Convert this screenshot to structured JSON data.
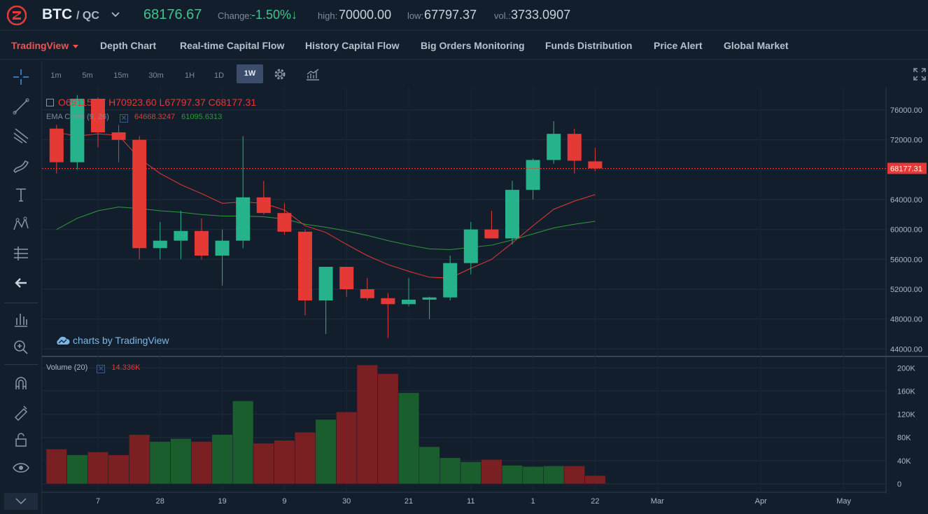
{
  "header": {
    "base": "BTC",
    "quote": "/ QC",
    "last_price": "68176.67",
    "change_label": "Change:",
    "change_value": "-1.50%↓",
    "high_label": "high:",
    "high_value": "70000.00",
    "low_label": "low:",
    "low_value": "67797.37",
    "vol_label": "vol.:",
    "vol_value": "3733.0907"
  },
  "nav": {
    "items": [
      {
        "label": "TradingView"
      },
      {
        "label": "Depth Chart"
      },
      {
        "label": "Real-time Capital Flow"
      },
      {
        "label": "History Capital Flow"
      },
      {
        "label": "Big Orders Monitoring"
      },
      {
        "label": "Funds Distribution"
      },
      {
        "label": "Price Alert"
      },
      {
        "label": "Global Market"
      }
    ]
  },
  "intervals": [
    "1m",
    "5m",
    "15m",
    "30m",
    "1H",
    "1D",
    "1W"
  ],
  "active_interval": "1W",
  "legend": {
    "ohlc": {
      "O": "O69115.17",
      "H": "H70923.60",
      "L": "L67797.37",
      "C": "C68177.31"
    },
    "ema_label": "EMA Cross (9, 26)",
    "ema_fast": "64668.3247",
    "ema_slow": "61095.6313",
    "volume_label": "Volume (20)",
    "volume_value": "14.336K",
    "watermark": "charts by TradingView"
  },
  "colors": {
    "up": "#26b28a",
    "down": "#e53935",
    "vol_up": "#1b5e2e",
    "vol_down": "#7a1f22",
    "ema_fast": "#e53935",
    "ema_slow": "#2e9a3a",
    "accent": "#ef5350"
  },
  "chart_data": {
    "type": "candlestick",
    "price_axis": {
      "ticks": [
        44000,
        48000,
        52000,
        56000,
        60000,
        64000,
        68000,
        72000,
        76000
      ],
      "tick_labels": [
        "44000.00",
        "48000.00",
        "52000.00",
        "56000.00",
        "60000.00",
        "64000.00",
        "68000.00",
        "72000.00",
        "76000.00"
      ]
    },
    "last_price_label": "68177.31",
    "last_price": 68177.31,
    "volume_axis": {
      "ticks": [
        0,
        40000,
        80000,
        120000,
        160000,
        200000
      ],
      "tick_labels": [
        "0",
        "40K",
        "80K",
        "120K",
        "160K",
        "200K"
      ]
    },
    "x_ticks": [
      {
        "label": "7",
        "index": 2
      },
      {
        "label": "28",
        "index": 5
      },
      {
        "label": "19",
        "index": 8
      },
      {
        "label": "9",
        "index": 11
      },
      {
        "label": "30",
        "index": 14
      },
      {
        "label": "21",
        "index": 17
      },
      {
        "label": "11",
        "index": 20
      },
      {
        "label": "1",
        "index": 23
      },
      {
        "label": "22",
        "index": 26
      },
      {
        "label": "Mar",
        "index": 29
      },
      {
        "label": "Apr",
        "index": 34
      },
      {
        "label": "May",
        "index": 38
      }
    ],
    "candles": [
      {
        "o": 73500,
        "h": 74000,
        "l": 67500,
        "c": 69000,
        "v": 60000
      },
      {
        "o": 69000,
        "h": 78000,
        "l": 68000,
        "c": 77500,
        "v": 50000
      },
      {
        "o": 77500,
        "h": 77700,
        "l": 71000,
        "c": 73000,
        "v": 55000
      },
      {
        "o": 73000,
        "h": 74000,
        "l": 69000,
        "c": 72000,
        "v": 50000
      },
      {
        "o": 72000,
        "h": 72500,
        "l": 56000,
        "c": 57500,
        "v": 85000
      },
      {
        "o": 57500,
        "h": 61000,
        "l": 56000,
        "c": 58500,
        "v": 73000
      },
      {
        "o": 58500,
        "h": 62500,
        "l": 56000,
        "c": 59800,
        "v": 78000
      },
      {
        "o": 59800,
        "h": 61500,
        "l": 56000,
        "c": 56500,
        "v": 73000
      },
      {
        "o": 56500,
        "h": 60000,
        "l": 52500,
        "c": 58500,
        "v": 85000
      },
      {
        "o": 58500,
        "h": 72500,
        "l": 57500,
        "c": 64300,
        "v": 143000
      },
      {
        "o": 64300,
        "h": 66500,
        "l": 62000,
        "c": 62200,
        "v": 70000
      },
      {
        "o": 62200,
        "h": 63500,
        "l": 59300,
        "c": 59700,
        "v": 75000
      },
      {
        "o": 59700,
        "h": 60000,
        "l": 48500,
        "c": 50500,
        "v": 89000
      },
      {
        "o": 50500,
        "h": 55000,
        "l": 46000,
        "c": 55000,
        "v": 111000
      },
      {
        "o": 55000,
        "h": 55000,
        "l": 51000,
        "c": 52000,
        "v": 124000
      },
      {
        "o": 52000,
        "h": 53500,
        "l": 50500,
        "c": 50800,
        "v": 205000
      },
      {
        "o": 50800,
        "h": 51500,
        "l": 45500,
        "c": 50000,
        "v": 190000
      },
      {
        "o": 50000,
        "h": 53500,
        "l": 49700,
        "c": 50600,
        "v": 157000
      },
      {
        "o": 50600,
        "h": 51000,
        "l": 48000,
        "c": 50900,
        "v": 64000
      },
      {
        "o": 50900,
        "h": 56500,
        "l": 50500,
        "c": 55500,
        "v": 45000
      },
      {
        "o": 55500,
        "h": 61000,
        "l": 54000,
        "c": 60000,
        "v": 38000
      },
      {
        "o": 60000,
        "h": 62500,
        "l": 58800,
        "c": 58800,
        "v": 42000
      },
      {
        "o": 58800,
        "h": 66500,
        "l": 58000,
        "c": 65300,
        "v": 32000
      },
      {
        "o": 65300,
        "h": 69500,
        "l": 64000,
        "c": 69300,
        "v": 30000
      },
      {
        "o": 69300,
        "h": 74500,
        "l": 68800,
        "c": 72800,
        "v": 31000
      },
      {
        "o": 72800,
        "h": 73500,
        "l": 67500,
        "c": 69200,
        "v": 31000
      },
      {
        "o": 69115.17,
        "h": 70923.6,
        "l": 67797.37,
        "c": 68177.31,
        "v": 14336
      }
    ],
    "ema_fast": [
      73000,
      72500,
      72800,
      72600,
      69500,
      67500,
      66000,
      64800,
      63500,
      63700,
      63500,
      62600,
      60500,
      59600,
      58000,
      56500,
      55300,
      54400,
      53600,
      53500,
      54800,
      56000,
      58200,
      60500,
      62700,
      63800,
      64668
    ],
    "ema_slow": [
      60000,
      61500,
      62500,
      63000,
      62800,
      62500,
      62300,
      62000,
      61800,
      61800,
      61700,
      61400,
      60700,
      60300,
      59800,
      59200,
      58500,
      57900,
      57400,
      57300,
      57600,
      57900,
      58600,
      59400,
      60200,
      60700,
      61096
    ]
  }
}
